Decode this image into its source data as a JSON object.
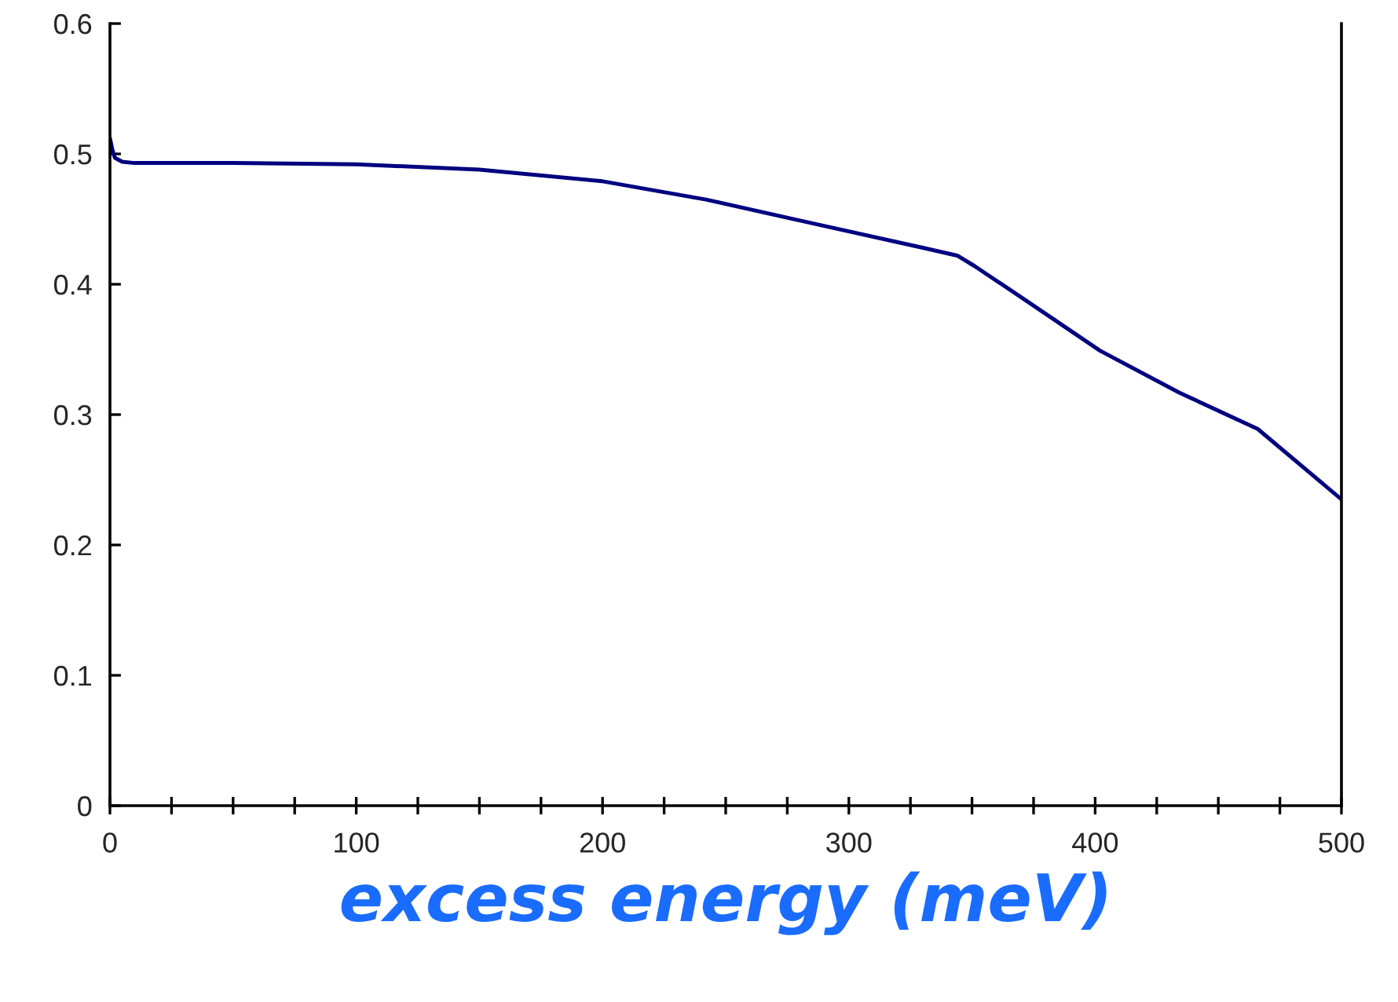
{
  "chart_data": {
    "type": "line",
    "xlabel": "excess energy (meV)",
    "x": [
      0,
      1,
      2,
      5,
      10,
      20,
      50,
      100,
      150,
      200,
      242,
      287,
      330,
      344,
      351,
      370,
      402,
      434,
      466,
      500
    ],
    "series": [
      {
        "color": "#000080",
        "values": [
          0.512,
          0.503,
          0.497,
          0.494,
          0.493,
          0.493,
          0.493,
          0.492,
          0.488,
          0.479,
          0.465,
          0.446,
          0.428,
          0.422,
          0.414,
          0.39,
          0.349,
          0.317,
          0.289,
          0.235
        ]
      }
    ],
    "xlim": [
      0,
      500
    ],
    "ylim": [
      0,
      0.6
    ],
    "xticks": [
      0,
      {
        "value": 25,
        "label": null
      },
      100,
      {
        "value": 50,
        "label": null
      },
      {
        "value": 75,
        "label": null
      },
      {
        "value": 125,
        "label": null
      },
      {
        "value": 150,
        "label": null
      },
      {
        "value": 175,
        "label": null
      },
      200,
      {
        "value": 225,
        "label": null
      },
      {
        "value": 250,
        "label": null
      },
      {
        "value": 275,
        "label": null
      },
      300,
      {
        "value": 325,
        "label": null
      },
      {
        "value": 350,
        "label": null
      },
      {
        "value": 375,
        "label": null
      },
      400,
      {
        "value": 425,
        "label": null
      },
      {
        "value": 450,
        "label": null
      },
      {
        "value": 475,
        "label": null
      },
      500
    ],
    "yticks": [
      0,
      0.1,
      0.2,
      0.3,
      0.4,
      0.5,
      0.6
    ],
    "grid": false,
    "legend": false,
    "marker": "none",
    "line_style": "solid"
  }
}
